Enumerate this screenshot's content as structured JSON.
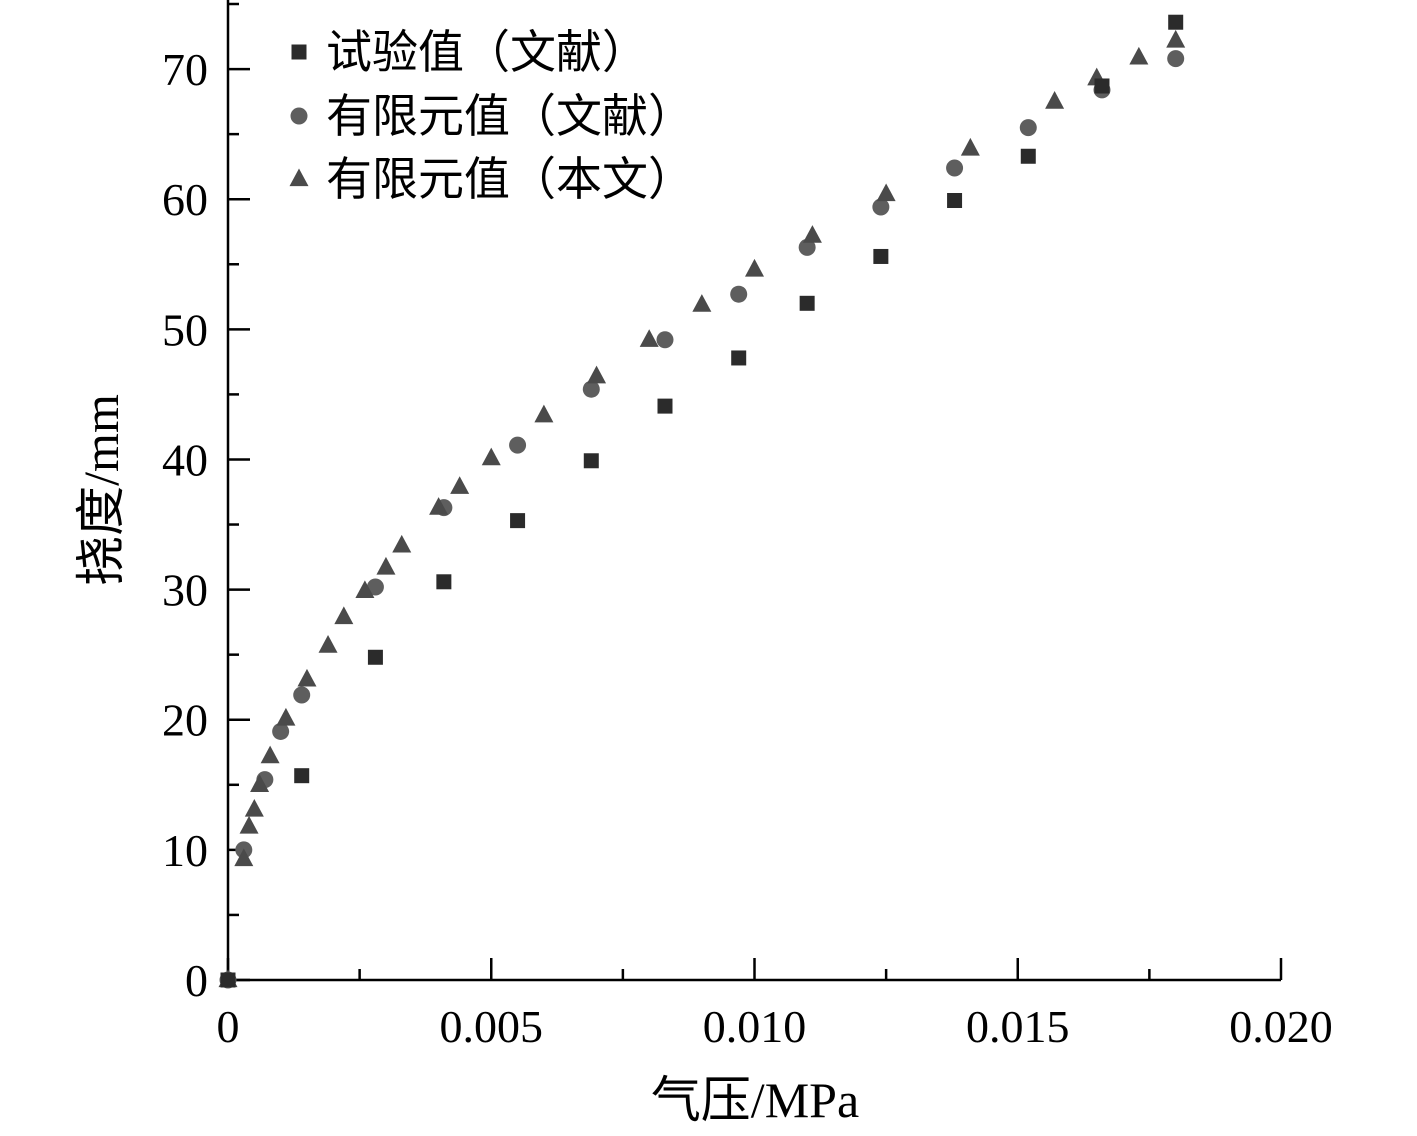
{
  "chart_data": {
    "type": "scatter",
    "title": "",
    "xlabel": "气压/MPa",
    "ylabel": "挠度/mm",
    "xlim": [
      0,
      0.02
    ],
    "ylim": [
      0,
      75
    ],
    "xticks": [
      0,
      0.005,
      0.01,
      0.015,
      0.02
    ],
    "xtick_labels": [
      "0",
      "0.005",
      "0.010",
      "0.015",
      "0.020"
    ],
    "yticks": [
      0,
      10,
      20,
      30,
      40,
      50,
      60,
      70
    ],
    "ytick_labels": [
      "0",
      "10",
      "20",
      "30",
      "40",
      "50",
      "60",
      "70"
    ],
    "grid": false,
    "legend": "top-left",
    "series": [
      {
        "name": "试验值（文献）",
        "marker": "square",
        "color": "#2b2b2b",
        "x": [
          0,
          0.0014,
          0.0028,
          0.0041,
          0.0055,
          0.0069,
          0.0083,
          0.0097,
          0.011,
          0.0124,
          0.0138,
          0.0152,
          0.0166,
          0.018
        ],
        "y": [
          0,
          15.7,
          24.8,
          30.6,
          35.3,
          39.9,
          44.1,
          47.8,
          52.0,
          55.6,
          59.9,
          63.3,
          68.7,
          73.6
        ]
      },
      {
        "name": "有限元值（文献）",
        "marker": "circle",
        "color": "#5e5e5e",
        "x": [
          0,
          0.0003,
          0.0007,
          0.001,
          0.0014,
          0.0028,
          0.0041,
          0.0055,
          0.0069,
          0.0083,
          0.0097,
          0.011,
          0.0124,
          0.0138,
          0.0152,
          0.0166,
          0.018
        ],
        "y": [
          0,
          10.0,
          15.4,
          19.1,
          21.9,
          30.2,
          36.3,
          41.1,
          45.4,
          49.2,
          52.7,
          56.3,
          59.4,
          62.4,
          65.5,
          68.4,
          70.8
        ]
      },
      {
        "name": "有限元值（本文）",
        "marker": "triangle",
        "color": "#4a4a4a",
        "x": [
          0,
          0.0003,
          0.0004,
          0.0005,
          0.0006,
          0.0008,
          0.0011,
          0.0015,
          0.0019,
          0.0022,
          0.0026,
          0.003,
          0.0033,
          0.004,
          0.0044,
          0.005,
          0.006,
          0.007,
          0.008,
          0.009,
          0.01,
          0.0111,
          0.0125,
          0.0141,
          0.0157,
          0.0165,
          0.0173,
          0.018
        ],
        "y": [
          0,
          9.3,
          11.8,
          13.1,
          15.0,
          17.2,
          20.1,
          23.1,
          25.7,
          27.9,
          29.9,
          31.7,
          33.4,
          36.3,
          37.9,
          40.1,
          43.4,
          46.4,
          49.2,
          51.9,
          54.6,
          57.2,
          60.4,
          63.9,
          67.5,
          69.3,
          70.9,
          72.2
        ]
      }
    ]
  }
}
